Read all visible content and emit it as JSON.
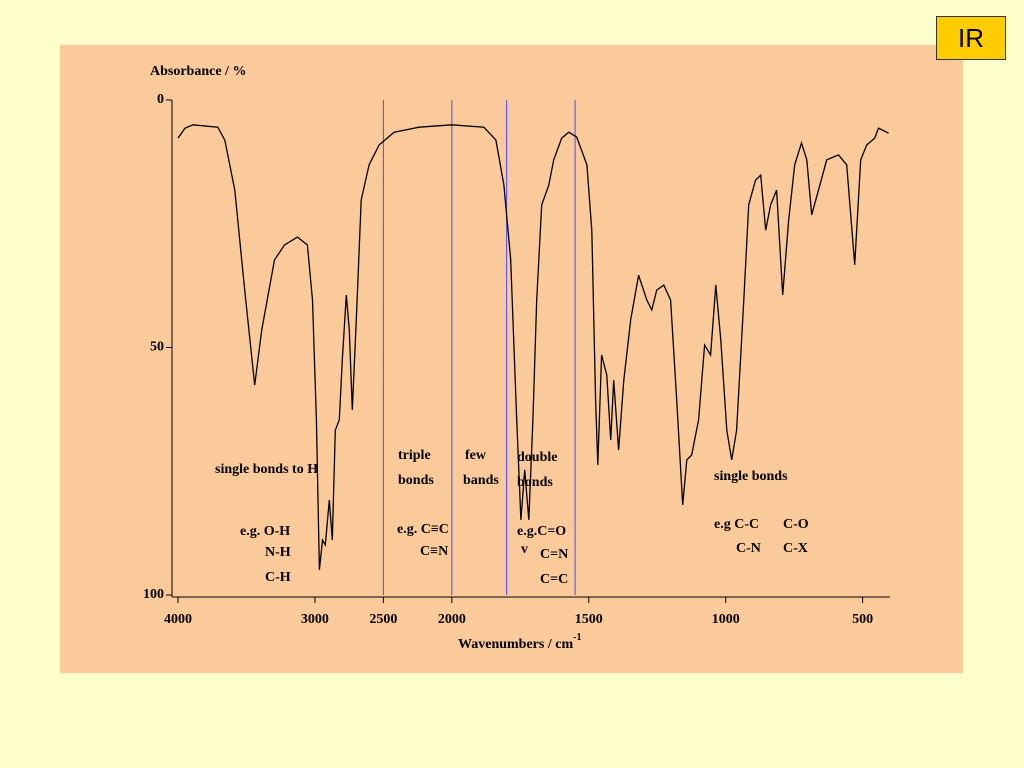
{
  "slide_label": "IR",
  "chart_data": {
    "type": "line",
    "y_label": "Absorbance / %",
    "x_label": "Wavenumbers / cm",
    "x_label_superscript": "-1",
    "x": [
      4000,
      3949,
      3891,
      3709,
      3658,
      3585,
      3513,
      3440,
      3389,
      3295,
      3222,
      3127,
      3055,
      3018,
      2989,
      2967,
      2945,
      2924,
      2895,
      2873,
      2851,
      2822,
      2800,
      2771,
      2749,
      2727,
      2698,
      2662,
      2604,
      2531,
      2422,
      2240,
      2000,
      1883,
      1839,
      1810,
      1785,
      1763,
      1748,
      1734,
      1719,
      1704,
      1690,
      1672,
      1646,
      1628,
      1599,
      1573,
      1544,
      1507,
      1489,
      1475,
      1467,
      1453,
      1434,
      1420,
      1409,
      1391,
      1372,
      1347,
      1318,
      1288,
      1270,
      1252,
      1226,
      1201,
      1179,
      1157,
      1142,
      1124,
      1099,
      1077,
      1055,
      1036,
      1018,
      996,
      978,
      960,
      934,
      916,
      891,
      872,
      854,
      836,
      814,
      792,
      770,
      748,
      723,
      704,
      686,
      661,
      631,
      588,
      558,
      529,
      507,
      485,
      456,
      442,
      405
    ],
    "values": [
      7.7,
      5.7,
      5,
      5.5,
      8.1,
      18.2,
      38.4,
      57.6,
      46.5,
      32.3,
      29.3,
      27.7,
      29.3,
      40.4,
      64.6,
      94.9,
      88.9,
      89.9,
      80.8,
      88.9,
      66.7,
      64.6,
      52.5,
      39.4,
      46.5,
      62.6,
      44.4,
      20.2,
      13.1,
      9.1,
      6.5,
      5.5,
      5,
      5.5,
      8.1,
      17.2,
      32.3,
      64.6,
      84.8,
      74.7,
      84.8,
      64.6,
      40.4,
      21.2,
      17.2,
      12.1,
      7.7,
      6.5,
      7.5,
      13.1,
      26.3,
      60.6,
      73.7,
      51.5,
      55.6,
      68.7,
      56.6,
      70.7,
      56.6,
      44.4,
      35.4,
      40.4,
      42.4,
      38.4,
      37.4,
      40.4,
      60.6,
      81.8,
      72.7,
      71.7,
      64.6,
      49.5,
      51.5,
      37.4,
      48.5,
      66.7,
      72.7,
      66.7,
      40.4,
      21.2,
      16.2,
      15.2,
      26.3,
      21.2,
      18.2,
      39.4,
      24.2,
      13.1,
      8.7,
      12.1,
      23.2,
      18.2,
      12.1,
      11.1,
      13.1,
      33.3,
      12.1,
      9.1,
      7.7,
      5.7,
      6.7
    ],
    "color": "#000000",
    "xlim": [
      4000,
      400
    ],
    "x_scale_break": {
      "at": 2000,
      "factor": 2
    },
    "xticks": [
      4000,
      3000,
      2500,
      2000,
      1500,
      1000,
      500
    ],
    "ylim": [
      0,
      100
    ],
    "y_reversed": true,
    "yticks": [
      0,
      50,
      100
    ],
    "region_lines": [
      2500,
      2000,
      1800,
      1550
    ],
    "region_line_color": "#4a4aff",
    "annotations": [
      "single bonds to H",
      "e.g. O-H",
      "N-H",
      "C-H",
      "triple",
      "bonds",
      "e.g. C≡C",
      "C≡N",
      "few",
      "bands",
      "double",
      "bonds",
      "e.g.C=O",
      "v",
      "C=N",
      "C=C",
      "single bonds",
      "e.g C-C",
      "C-O",
      "C-N",
      "C-X"
    ]
  }
}
